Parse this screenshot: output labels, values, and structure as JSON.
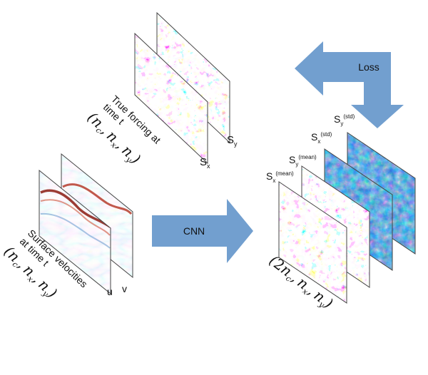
{
  "diagram": {
    "forcing": {
      "caption_line1": "True forcing at",
      "caption_line2": "time t",
      "shape": "(n_c, n_x, n_y)",
      "shape_open": "(",
      "shape_close": ")",
      "shape_n": "n",
      "shape_sub_c": "c",
      "shape_sub_x": "x",
      "shape_sub_y": "y",
      "shape_comma": ",",
      "panel_sx_base": "S",
      "panel_sx_sub": "x",
      "panel_sy_base": "S",
      "panel_sy_sub": "y"
    },
    "velocities": {
      "caption_line1": "Surface velocities",
      "caption_line2": "at time t",
      "shape_open": "(",
      "shape_close": ")",
      "shape_n": "n",
      "shape_sub_c": "c",
      "shape_sub_x": "x",
      "shape_sub_y": "y",
      "shape_comma": ",",
      "panel_u": "u",
      "panel_v": "v"
    },
    "cnn_arrow": {
      "label": "CNN",
      "color": "#729fcf"
    },
    "loss_arrow": {
      "label": "Loss",
      "color": "#729fcf"
    },
    "output": {
      "shape_open": "(",
      "shape_close": ")",
      "shape_prefix": "2",
      "shape_n": "n",
      "shape_sub_c": "c",
      "shape_sub_x": "x",
      "shape_sub_y": "y",
      "shape_comma": ",",
      "panels": [
        {
          "base": "S",
          "sub": "x",
          "sup": "(mean)"
        },
        {
          "base": "S",
          "sub": "y",
          "sup": "(mean)"
        },
        {
          "base": "S",
          "sub": "x",
          "sup": "(std)"
        },
        {
          "base": "S",
          "sub": "y",
          "sup": "(std)"
        }
      ]
    }
  }
}
